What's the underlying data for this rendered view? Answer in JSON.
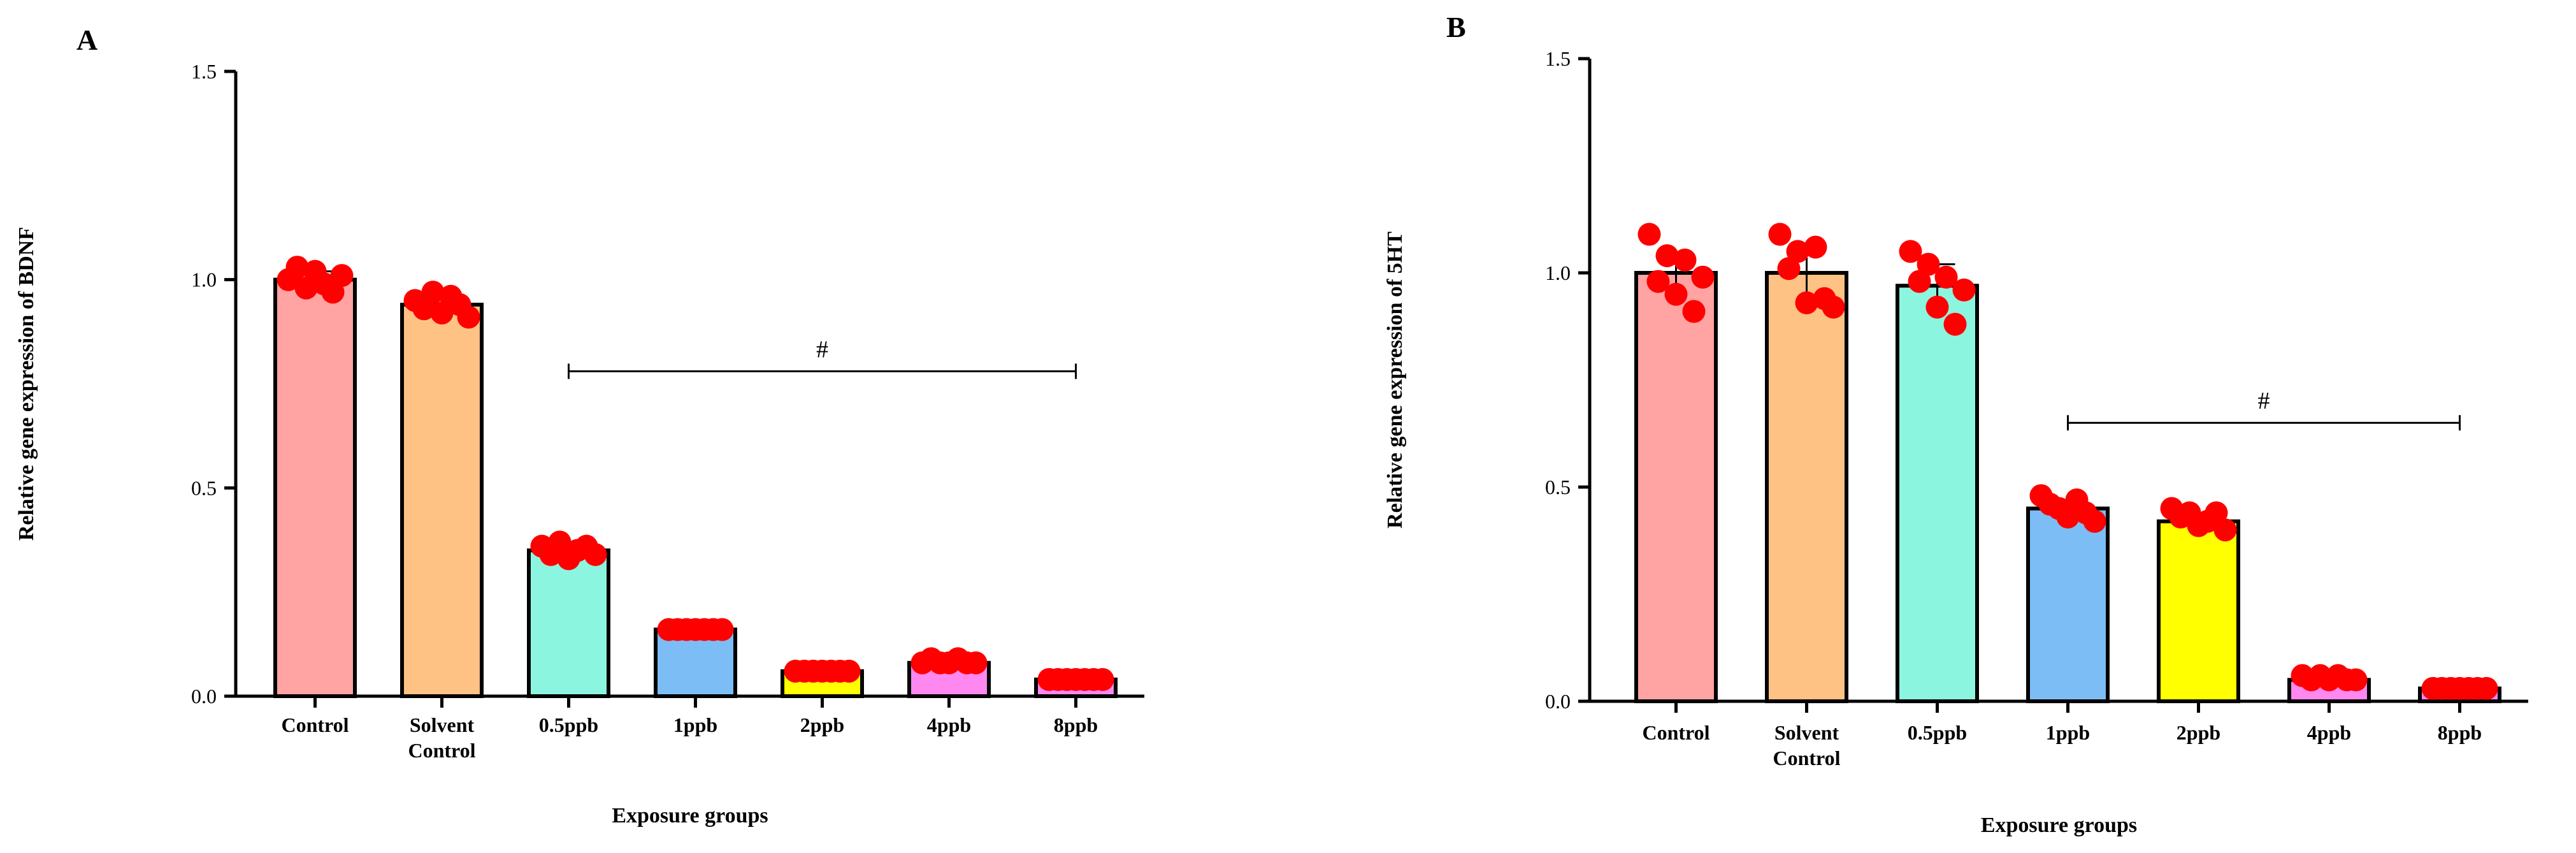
{
  "chart_data": [
    {
      "panel": "A",
      "type": "bar",
      "xlabel": "Exposure groups",
      "ylabel": "Relative gene expression of BDNF",
      "ylim": [
        0,
        1.5
      ],
      "yticks": [
        "0.0",
        "0.5",
        "1.0",
        "1.5"
      ],
      "categories": [
        "Control",
        "Solvent Control",
        "0.5ppb",
        "1ppb",
        "2ppb",
        "4ppb",
        "8ppb"
      ],
      "category_lines": [
        [
          "Control"
        ],
        [
          "Solvent",
          "Control"
        ],
        [
          "0.5ppb"
        ],
        [
          "1ppb"
        ],
        [
          "2ppb"
        ],
        [
          "4ppb"
        ],
        [
          "8ppb"
        ]
      ],
      "values": [
        1.0,
        0.94,
        0.35,
        0.16,
        0.06,
        0.08,
        0.04
      ],
      "errors": [
        0.02,
        0.02,
        0.015,
        0.005,
        0.005,
        0.005,
        0.003
      ],
      "colors": [
        "#FFA3A3",
        "#FFC285",
        "#8CF5E0",
        "#7CBDF5",
        "#FFFF00",
        "#FF88F0",
        "#FF88F0"
      ],
      "points": [
        [
          1.0,
          1.03,
          0.98,
          1.02,
          0.99,
          0.97,
          1.01
        ],
        [
          0.95,
          0.93,
          0.97,
          0.92,
          0.96,
          0.94,
          0.91
        ],
        [
          0.36,
          0.34,
          0.37,
          0.33,
          0.35,
          0.36,
          0.34
        ],
        [
          0.16,
          0.16,
          0.16,
          0.16,
          0.16,
          0.16,
          0.16
        ],
        [
          0.06,
          0.06,
          0.06,
          0.06,
          0.06,
          0.06,
          0.06
        ],
        [
          0.08,
          0.09,
          0.08,
          0.08,
          0.09,
          0.08,
          0.08
        ],
        [
          0.04,
          0.04,
          0.04,
          0.04,
          0.04,
          0.04,
          0.04
        ]
      ],
      "significance": {
        "label": "#",
        "from": "0.5ppb",
        "to": "8ppb",
        "y": 0.78
      }
    },
    {
      "panel": "B",
      "type": "bar",
      "xlabel": "Exposure groups",
      "ylabel": "Relative gene expression of 5HT",
      "ylim": [
        0,
        1.5
      ],
      "yticks": [
        "0.0",
        "0.5",
        "1.0",
        "1.5"
      ],
      "categories": [
        "Control",
        "Solvent Control",
        "0.5ppb",
        "1ppb",
        "2ppb",
        "4ppb",
        "8ppb"
      ],
      "category_lines": [
        [
          "Control"
        ],
        [
          "Solvent",
          "Control"
        ],
        [
          "0.5ppb"
        ],
        [
          "1ppb"
        ],
        [
          "2ppb"
        ],
        [
          "4ppb"
        ],
        [
          "8ppb"
        ]
      ],
      "values": [
        1.0,
        1.0,
        0.97,
        0.45,
        0.42,
        0.05,
        0.03
      ],
      "errors": [
        0.04,
        0.06,
        0.05,
        0.02,
        0.015,
        0.008,
        0.004
      ],
      "colors": [
        "#FFA3A3",
        "#FFC285",
        "#8CF5E0",
        "#7CBDF5",
        "#FFFF00",
        "#FF88F0",
        "#FF88F0"
      ],
      "points": [
        [
          1.09,
          0.98,
          1.04,
          0.95,
          1.03,
          0.91,
          0.99
        ],
        [
          1.09,
          1.01,
          1.05,
          0.93,
          1.06,
          0.94,
          0.92
        ],
        [
          1.05,
          0.98,
          1.02,
          0.92,
          0.99,
          0.88,
          0.96
        ],
        [
          0.48,
          0.46,
          0.45,
          0.43,
          0.47,
          0.44,
          0.42
        ],
        [
          0.45,
          0.43,
          0.44,
          0.41,
          0.42,
          0.44,
          0.4
        ],
        [
          0.06,
          0.05,
          0.06,
          0.05,
          0.06,
          0.05,
          0.05
        ],
        [
          0.03,
          0.03,
          0.03,
          0.03,
          0.03,
          0.03,
          0.03
        ]
      ],
      "significance": {
        "label": "#",
        "from": "1ppb",
        "to": "8ppb",
        "y": 0.65
      }
    }
  ]
}
